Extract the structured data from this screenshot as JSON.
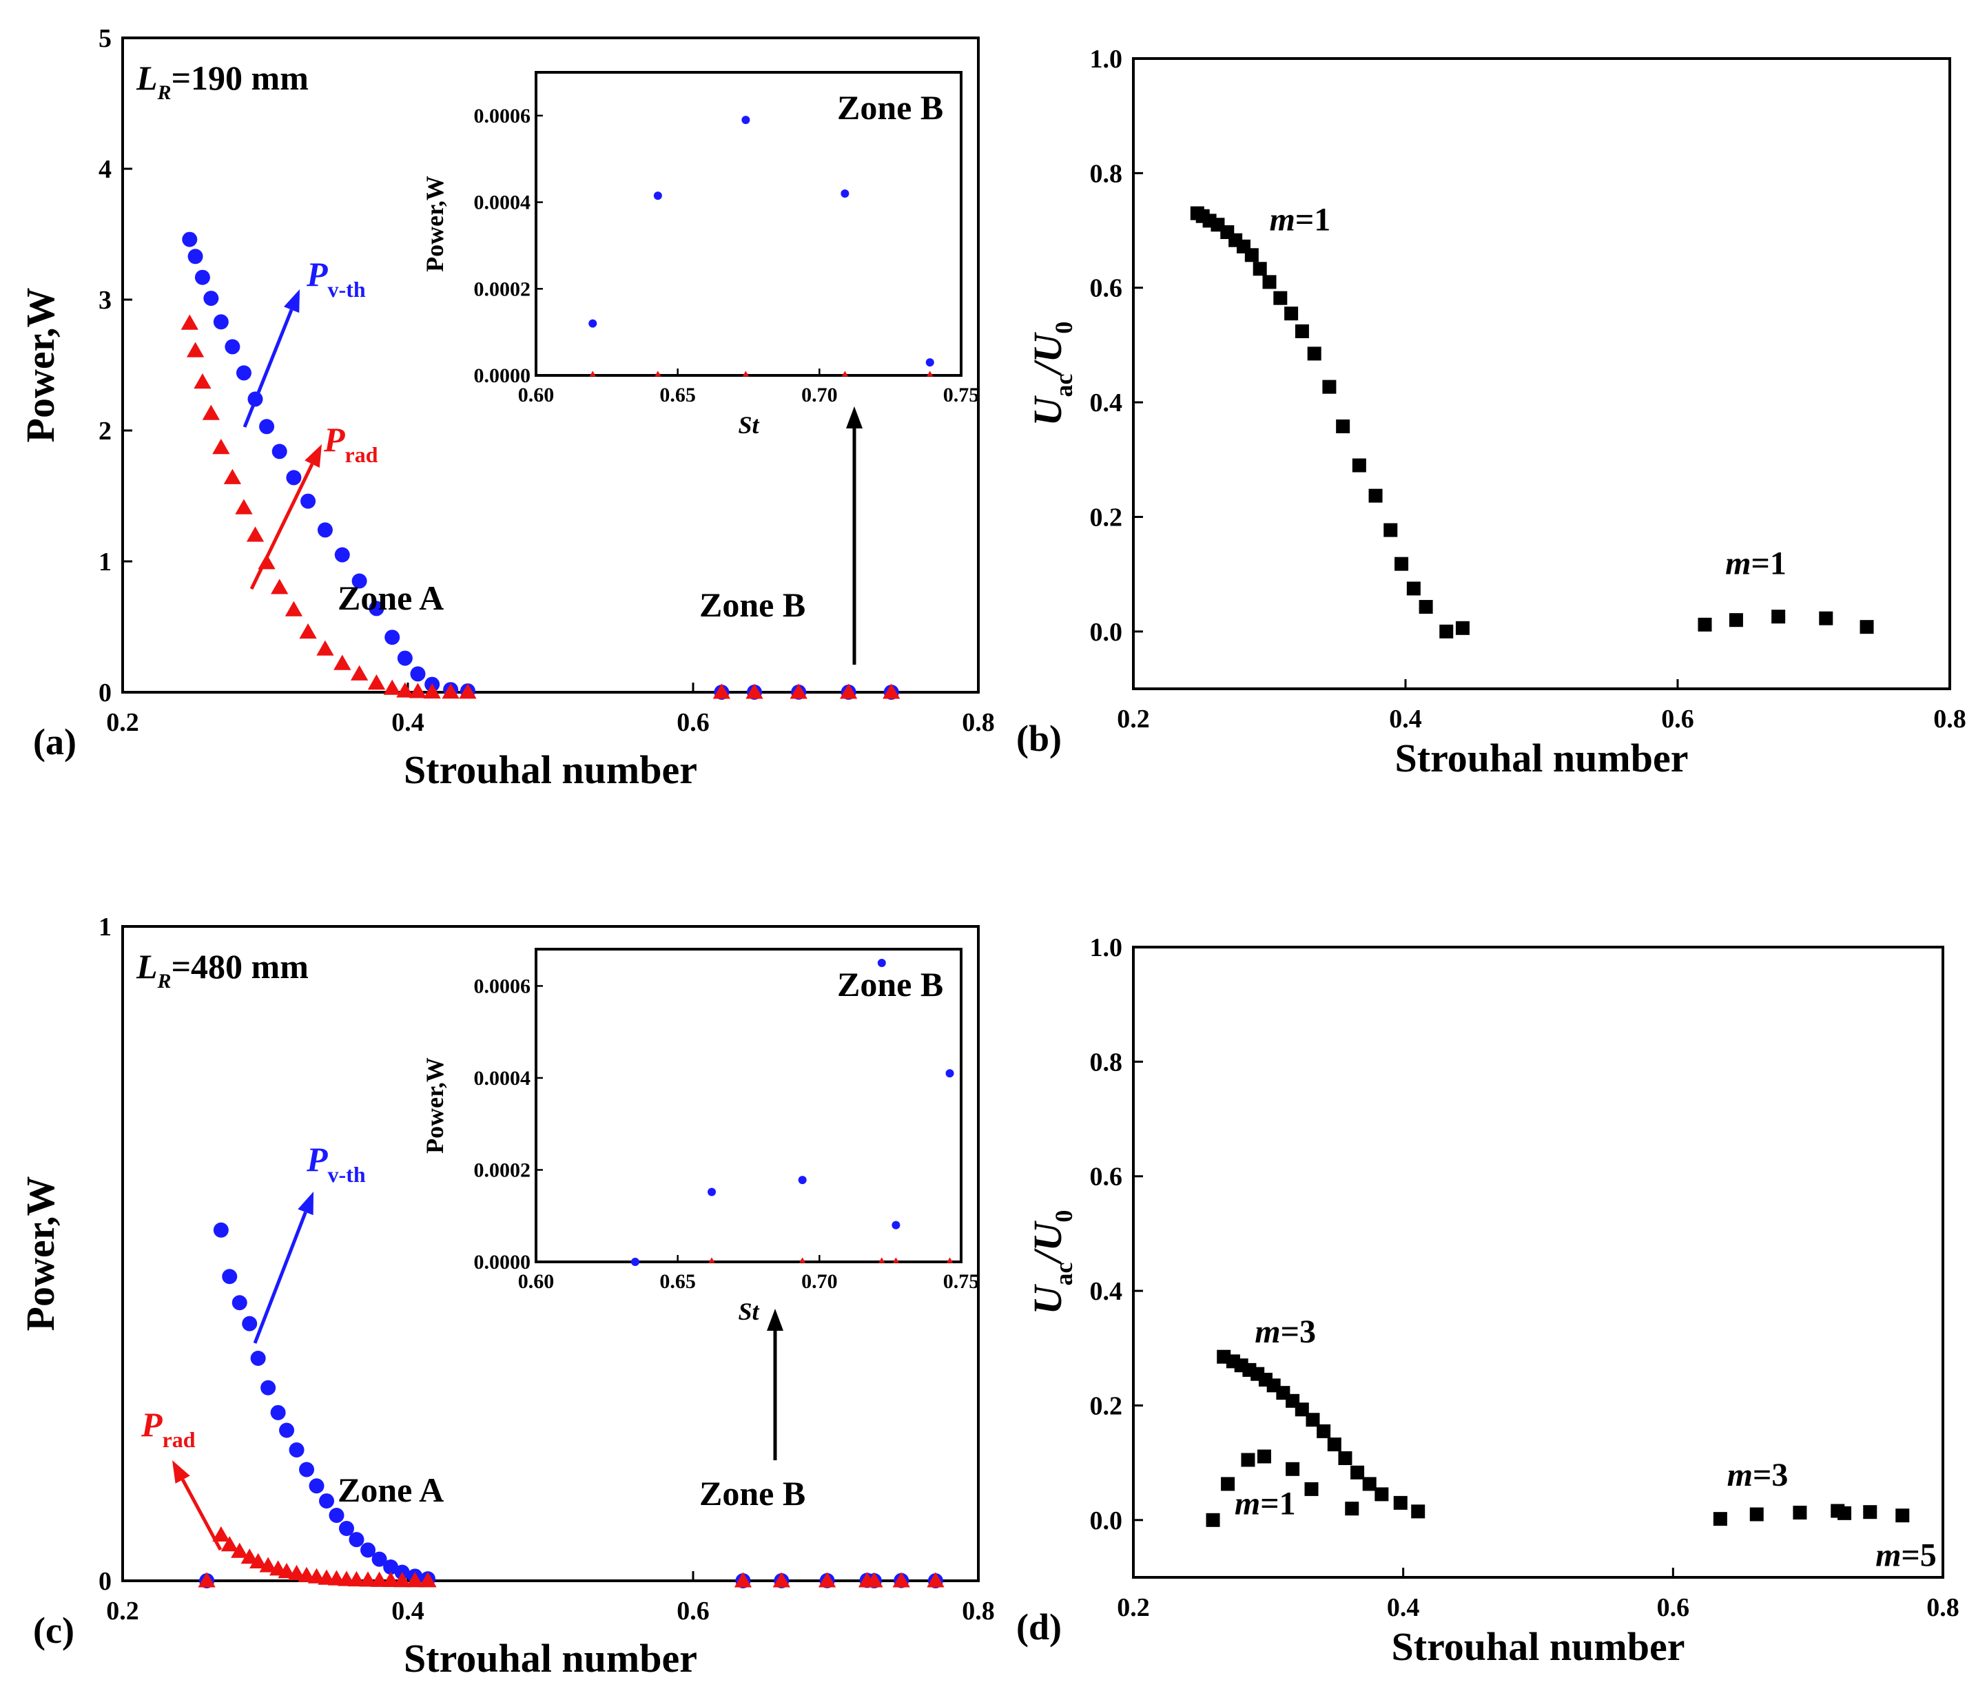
{
  "chart_data": [
    {
      "panel": "(a)",
      "type": "scatter",
      "annotation": {
        "lr_symbol": "L",
        "lr_sub": "R",
        "lr_value": "=190 mm"
      },
      "xlabel": "Strouhal number",
      "ylabel": "Power,W",
      "xlim": [
        0.2,
        0.8
      ],
      "ylim": [
        0,
        5
      ],
      "xticks": [
        "0.2",
        "0.4",
        "0.6",
        "0.8"
      ],
      "xtick_values": [
        0.2,
        0.4,
        0.6,
        0.8
      ],
      "yticks": [
        "0",
        "1",
        "2",
        "3",
        "4",
        "5"
      ],
      "ytick_values": [
        0,
        1,
        2,
        3,
        4,
        5
      ],
      "series": [
        {
          "name": "P_v-th",
          "symbol": "P",
          "subscript": "v-th",
          "marker": "circle",
          "color": "#1a1aff",
          "x": [
            0.247,
            0.251,
            0.256,
            0.262,
            0.269,
            0.277,
            0.285,
            0.293,
            0.301,
            0.31,
            0.32,
            0.33,
            0.342,
            0.354,
            0.366,
            0.378,
            0.389,
            0.398,
            0.407,
            0.417,
            0.43,
            0.442,
            0.62,
            0.643,
            0.674,
            0.709,
            0.739
          ],
          "y": [
            3.46,
            3.33,
            3.17,
            3.01,
            2.83,
            2.64,
            2.44,
            2.24,
            2.03,
            1.84,
            1.64,
            1.46,
            1.24,
            1.05,
            0.85,
            0.64,
            0.42,
            0.26,
            0.14,
            0.06,
            0.02,
            0.01,
            0.0001,
            0.0004,
            0.0006,
            0.0004,
            0.0
          ]
        },
        {
          "name": "P_rad",
          "symbol": "P",
          "subscript": "rad",
          "marker": "triangle",
          "color": "#ee1111",
          "x": [
            0.247,
            0.251,
            0.256,
            0.262,
            0.269,
            0.277,
            0.285,
            0.293,
            0.301,
            0.31,
            0.32,
            0.33,
            0.342,
            0.354,
            0.366,
            0.378,
            0.389,
            0.398,
            0.407,
            0.417,
            0.43,
            0.442,
            0.62,
            0.643,
            0.674,
            0.709,
            0.739
          ],
          "y": [
            2.82,
            2.61,
            2.37,
            2.13,
            1.87,
            1.64,
            1.41,
            1.2,
            0.99,
            0.8,
            0.63,
            0.46,
            0.33,
            0.22,
            0.14,
            0.07,
            0.03,
            0.01,
            0.005,
            0.002,
            0.001,
            0.0005,
            0.0,
            0.0,
            0.0,
            0.0,
            0.0
          ]
        }
      ],
      "zone_a_label": "Zone A",
      "zone_b_label": "Zone B",
      "inset": {
        "xlabel": "St",
        "ylabel": "Power,W",
        "title": "Zone B",
        "xlim": [
          0.6,
          0.75
        ],
        "ylim": [
          0,
          0.0007
        ],
        "xticks": [
          "0.60",
          "0.65",
          "0.70",
          "0.75"
        ],
        "xtick_values": [
          0.6,
          0.65,
          0.7,
          0.75
        ],
        "yticks": [
          "0.0000",
          "0.0002",
          "0.0004",
          "0.0006"
        ],
        "ytick_values": [
          0,
          0.0002,
          0.0004,
          0.0006
        ],
        "blue": {
          "x": [
            0.62,
            0.643,
            0.674,
            0.709,
            0.739
          ],
          "y": [
            0.00012,
            0.000415,
            0.00059,
            0.00042,
            3e-05
          ]
        },
        "red": {
          "x": [
            0.62,
            0.643,
            0.674,
            0.709,
            0.739
          ],
          "y": [
            0,
            0,
            0,
            0,
            0
          ]
        }
      }
    },
    {
      "panel": "(b)",
      "type": "scatter",
      "xlabel": "Strouhal number",
      "ylabel_main": "U",
      "ylabel_sub": "ac",
      "ylabel_div": "/U",
      "ylabel_sub2": "0",
      "xlim": [
        0.2,
        0.8
      ],
      "ylim": [
        -0.1,
        1.0
      ],
      "xticks": [
        "0.2",
        "0.4",
        "0.6",
        "0.8"
      ],
      "xtick_values": [
        0.2,
        0.4,
        0.6,
        0.8
      ],
      "yticks": [
        "0.0",
        "0.2",
        "0.4",
        "0.6",
        "0.8",
        "1.0"
      ],
      "ytick_values": [
        0,
        0.2,
        0.4,
        0.6,
        0.8,
        1.0
      ],
      "series": [
        {
          "name": "squares",
          "marker": "square",
          "color": "#000000",
          "x": [
            0.247,
            0.251,
            0.256,
            0.262,
            0.269,
            0.275,
            0.281,
            0.287,
            0.293,
            0.3,
            0.308,
            0.316,
            0.324,
            0.333,
            0.344,
            0.354,
            0.366,
            0.378,
            0.389,
            0.397,
            0.406,
            0.415,
            0.43,
            0.442,
            0.62,
            0.643,
            0.674,
            0.709,
            0.739
          ],
          "y": [
            0.73,
            0.725,
            0.717,
            0.71,
            0.697,
            0.683,
            0.672,
            0.657,
            0.633,
            0.61,
            0.582,
            0.555,
            0.524,
            0.485,
            0.427,
            0.358,
            0.29,
            0.237,
            0.177,
            0.118,
            0.075,
            0.043,
            0.0,
            0.006,
            0.012,
            0.02,
            0.026,
            0.023,
            0.008
          ]
        }
      ],
      "labels": [
        {
          "pre": "m",
          "post": "=1",
          "x": 0.3,
          "y": 0.7
        },
        {
          "pre": "m",
          "post": "=1",
          "x": 0.635,
          "y": 0.1
        }
      ]
    },
    {
      "panel": "(c)",
      "type": "scatter",
      "annotation": {
        "lr_symbol": "L",
        "lr_sub": "R",
        "lr_value": "=480 mm"
      },
      "xlabel": "Strouhal number",
      "ylabel": "Power,W",
      "xlim": [
        0.2,
        0.8
      ],
      "ylim": [
        0,
        1
      ],
      "xticks": [
        "0.2",
        "0.4",
        "0.6",
        "0.8"
      ],
      "xtick_values": [
        0.2,
        0.4,
        0.6,
        0.8
      ],
      "yticks": [
        "0",
        "1"
      ],
      "ytick_values": [
        0,
        1
      ],
      "series": [
        {
          "name": "P_v-th",
          "symbol": "P",
          "subscript": "v-th",
          "marker": "circle",
          "color": "#1a1aff",
          "x": [
            0.259,
            0.269,
            0.275,
            0.282,
            0.289,
            0.295,
            0.302,
            0.309,
            0.315,
            0.322,
            0.329,
            0.336,
            0.343,
            0.35,
            0.357,
            0.364,
            0.372,
            0.38,
            0.388,
            0.396,
            0.405,
            0.414,
            0.635,
            0.662,
            0.694,
            0.722,
            0.727,
            0.746,
            0.77
          ],
          "y": [
            0.0,
            0.536,
            0.465,
            0.425,
            0.393,
            0.34,
            0.295,
            0.257,
            0.23,
            0.2,
            0.17,
            0.145,
            0.122,
            0.1,
            0.08,
            0.063,
            0.047,
            0.033,
            0.021,
            0.013,
            0.007,
            0.003,
            0.0,
            0.0001,
            0.0002,
            0.0006,
            0.0001,
            0.0004,
            0.0
          ]
        },
        {
          "name": "P_rad",
          "symbol": "P",
          "subscript": "rad",
          "marker": "triangle",
          "color": "#ee1111",
          "x": [
            0.259,
            0.269,
            0.275,
            0.282,
            0.289,
            0.295,
            0.302,
            0.309,
            0.315,
            0.322,
            0.329,
            0.336,
            0.343,
            0.35,
            0.357,
            0.364,
            0.372,
            0.38,
            0.388,
            0.396,
            0.405,
            0.414,
            0.635,
            0.662,
            0.694,
            0.722,
            0.727,
            0.746,
            0.77
          ],
          "y": [
            0.0,
            0.07,
            0.055,
            0.045,
            0.036,
            0.029,
            0.023,
            0.018,
            0.014,
            0.011,
            0.008,
            0.006,
            0.004,
            0.003,
            0.002,
            0.0015,
            0.001,
            0.0007,
            0.0005,
            0.0003,
            0.0002,
            0.0001,
            0,
            0,
            0,
            0,
            0,
            0,
            0
          ]
        }
      ],
      "zone_a_label": "Zone A",
      "zone_b_label": "Zone B",
      "inset": {
        "xlabel": "St",
        "ylabel": "Power,W",
        "title": "Zone B",
        "xlim": [
          0.6,
          0.75
        ],
        "ylim": [
          0,
          0.00068
        ],
        "xticks": [
          "0.60",
          "0.65",
          "0.70",
          "0.75"
        ],
        "xtick_values": [
          0.6,
          0.65,
          0.7,
          0.75
        ],
        "yticks": [
          "0.0000",
          "0.0002",
          "0.0004",
          "0.0006"
        ],
        "ytick_values": [
          0,
          0.0002,
          0.0004,
          0.0006
        ],
        "blue": {
          "x": [
            0.635,
            0.662,
            0.694,
            0.722,
            0.727,
            0.746
          ],
          "y": [
            0.0,
            0.000152,
            0.000178,
            0.00065,
            8e-05,
            0.00041
          ]
        },
        "red": {
          "x": [
            0.635,
            0.662,
            0.694,
            0.722,
            0.727,
            0.746
          ],
          "y": [
            0,
            0,
            0,
            0,
            0,
            0
          ]
        }
      }
    },
    {
      "panel": "(d)",
      "type": "scatter",
      "xlabel": "Strouhal number",
      "ylabel_main": "U",
      "ylabel_sub": "ac",
      "ylabel_div": "/U",
      "ylabel_sub2": "0",
      "xlim": [
        0.2,
        0.8
      ],
      "ylim": [
        -0.1,
        1.0
      ],
      "xticks": [
        "0.2",
        "0.4",
        "0.6",
        "0.8"
      ],
      "xtick_values": [
        0.2,
        0.4,
        0.6,
        0.8
      ],
      "yticks": [
        "0.0",
        "0.2",
        "0.4",
        "0.6",
        "0.8",
        "1.0"
      ],
      "ytick_values": [
        0,
        0.2,
        0.4,
        0.6,
        0.8,
        1.0
      ],
      "series": [
        {
          "name": "m3_zoneA",
          "marker": "square",
          "color": "#000000",
          "x": [
            0.267,
            0.274,
            0.28,
            0.286,
            0.292,
            0.298,
            0.304,
            0.311,
            0.318,
            0.325,
            0.333,
            0.341,
            0.349,
            0.357,
            0.366,
            0.375,
            0.384,
            0.398,
            0.411
          ],
          "y": [
            0.285,
            0.277,
            0.27,
            0.262,
            0.255,
            0.245,
            0.235,
            0.222,
            0.208,
            0.193,
            0.175,
            0.155,
            0.132,
            0.108,
            0.083,
            0.063,
            0.045,
            0.03,
            0.015
          ]
        },
        {
          "name": "m1_zoneA",
          "marker": "square",
          "color": "#000000",
          "x": [
            0.259,
            0.27,
            0.285,
            0.297,
            0.318,
            0.332,
            0.362
          ],
          "y": [
            0.0,
            0.063,
            0.105,
            0.111,
            0.089,
            0.054,
            0.02
          ]
        },
        {
          "name": "zoneB",
          "marker": "square",
          "color": "#000000",
          "x": [
            0.635,
            0.662,
            0.694,
            0.722,
            0.727,
            0.746,
            0.77
          ],
          "y": [
            0.002,
            0.01,
            0.013,
            0.016,
            0.012,
            0.014,
            0.008
          ]
        }
      ],
      "labels": [
        {
          "pre": "m",
          "post": "=3",
          "x": 0.29,
          "y": 0.31
        },
        {
          "pre": "m",
          "post": "=1",
          "x": 0.275,
          "y": 0.01
        },
        {
          "pre": "m",
          "post": "=3",
          "x": 0.64,
          "y": 0.06
        },
        {
          "pre": "m",
          "post": "=5",
          "x": 0.75,
          "y": -0.08
        }
      ]
    }
  ]
}
